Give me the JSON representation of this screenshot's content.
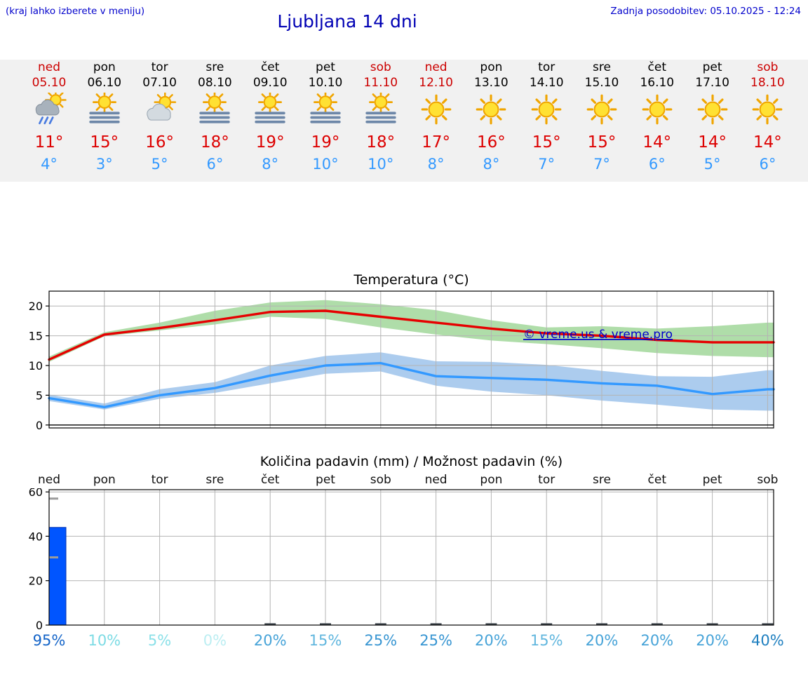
{
  "header": {
    "hint": "(kraj lahko izberete v meniju)",
    "title": "Ljubljana 14 dni",
    "updated": "Zadnja posodobitev: 05.10.2025 - 12:24"
  },
  "colors": {
    "link_blue": "#0000cc",
    "title_blue": "#0000b4",
    "weekend_red": "#cc0000",
    "tmax_red": "#dd0000",
    "tmin_blue": "#3399ff",
    "strip_bg": "#f1f1f1",
    "max_line": "#e60000",
    "min_line": "#3399ff",
    "max_band": "#a6d9a0",
    "min_band": "#a3c6ec",
    "bar_blue": "#0055ff"
  },
  "forecast": {
    "days": [
      {
        "name": "ned",
        "date": "05.10",
        "weekend": true,
        "icon": "sun-rain",
        "tmax": "11°",
        "tmin": "4°"
      },
      {
        "name": "pon",
        "date": "06.10",
        "weekend": false,
        "icon": "sun-fog",
        "tmax": "15°",
        "tmin": "3°"
      },
      {
        "name": "tor",
        "date": "07.10",
        "weekend": false,
        "icon": "sun-cloud",
        "tmax": "16°",
        "tmin": "5°"
      },
      {
        "name": "sre",
        "date": "08.10",
        "weekend": false,
        "icon": "sun-fog",
        "tmax": "18°",
        "tmin": "6°"
      },
      {
        "name": "čet",
        "date": "09.10",
        "weekend": false,
        "icon": "sun-fog",
        "tmax": "19°",
        "tmin": "8°"
      },
      {
        "name": "pet",
        "date": "10.10",
        "weekend": false,
        "icon": "sun-fog",
        "tmax": "19°",
        "tmin": "10°"
      },
      {
        "name": "sob",
        "date": "11.10",
        "weekend": true,
        "icon": "sun-fog",
        "tmax": "18°",
        "tmin": "10°"
      },
      {
        "name": "ned",
        "date": "12.10",
        "weekend": true,
        "icon": "sun",
        "tmax": "17°",
        "tmin": "8°"
      },
      {
        "name": "pon",
        "date": "13.10",
        "weekend": false,
        "icon": "sun",
        "tmax": "16°",
        "tmin": "8°"
      },
      {
        "name": "tor",
        "date": "14.10",
        "weekend": false,
        "icon": "sun",
        "tmax": "15°",
        "tmin": "7°"
      },
      {
        "name": "sre",
        "date": "15.10",
        "weekend": false,
        "icon": "sun",
        "tmax": "15°",
        "tmin": "7°"
      },
      {
        "name": "čet",
        "date": "16.10",
        "weekend": false,
        "icon": "sun",
        "tmax": "14°",
        "tmin": "6°"
      },
      {
        "name": "pet",
        "date": "17.10",
        "weekend": false,
        "icon": "sun",
        "tmax": "14°",
        "tmin": "5°"
      },
      {
        "name": "sob",
        "date": "18.10",
        "weekend": true,
        "icon": "sun",
        "tmax": "14°",
        "tmin": "6°"
      }
    ]
  },
  "chart_data": [
    {
      "type": "line",
      "title": "Temperatura (°C)",
      "categories": [
        "ned 05.10",
        "pon 06.10",
        "tor 07.10",
        "sre 08.10",
        "čet 09.10",
        "pet 10.10",
        "sob 11.10",
        "ned 12.10",
        "pon 13.10",
        "tor 14.10",
        "sre 15.10",
        "čet 16.10",
        "pet 17.10",
        "sob 18.10"
      ],
      "series": [
        {
          "name": "max temperatura",
          "color": "#e60000",
          "values": [
            11,
            15.2,
            16.3,
            17.6,
            19,
            19.2,
            18.2,
            17.2,
            16.2,
            15.4,
            15,
            14.3,
            13.9,
            13.9
          ]
        },
        {
          "name": "min temperatura",
          "color": "#3399ff",
          "values": [
            4.5,
            3,
            5,
            6.2,
            8.3,
            10,
            10.4,
            8.2,
            7.9,
            7.6,
            7,
            6.6,
            5.2,
            6
          ]
        }
      ],
      "bands": [
        {
          "series": "max temperatura",
          "color": "#a6d9a0",
          "upper": [
            11.5,
            15.6,
            17.2,
            19.2,
            20.6,
            21,
            20.3,
            19.3,
            17.6,
            16.4,
            16.6,
            16.2,
            16.6,
            17.2
          ],
          "lower": [
            10.6,
            14.9,
            15.9,
            16.9,
            18.2,
            17.8,
            16.4,
            15.2,
            14.2,
            13.6,
            12.9,
            12.1,
            11.6,
            11.4
          ]
        },
        {
          "series": "min temperatura",
          "color": "#a3c6ec",
          "upper": [
            5.1,
            3.6,
            6,
            7.2,
            10,
            11.6,
            12.2,
            10.7,
            10.6,
            10.1,
            9.1,
            8.2,
            8.1,
            9.2
          ],
          "lower": [
            4,
            2.6,
            4.4,
            5.4,
            7,
            8.6,
            9,
            6.6,
            5.6,
            5,
            4.1,
            3.4,
            2.6,
            2.4
          ]
        }
      ],
      "ylim": [
        -0.5,
        22.5
      ],
      "yticks": [
        0,
        5,
        10,
        15,
        20
      ],
      "grid": true,
      "legend": "none",
      "watermark": "© vreme.us & vreme.pro"
    },
    {
      "type": "bar",
      "title": "Količina padavin (mm) / Možnost padavin (%)",
      "categories": [
        "ned",
        "pon",
        "tor",
        "sre",
        "čet",
        "pet",
        "sob",
        "ned",
        "pon",
        "tor",
        "sre",
        "čet",
        "pet",
        "sob"
      ],
      "values_mm": [
        44,
        0,
        0,
        0,
        0.4,
        0.4,
        0.4,
        0.4,
        0.3,
        0.3,
        0.3,
        0.4,
        0.4,
        0.3
      ],
      "probability": [
        {
          "label": "95%",
          "color": "#1464c8"
        },
        {
          "label": "10%",
          "color": "#7cdbe4"
        },
        {
          "label": "5%",
          "color": "#8ae0e8"
        },
        {
          "label": "0%",
          "color": "#bceef2"
        },
        {
          "label": "20%",
          "color": "#46a3d8"
        },
        {
          "label": "15%",
          "color": "#60b6de"
        },
        {
          "label": "25%",
          "color": "#3795d2"
        },
        {
          "label": "25%",
          "color": "#3795d2"
        },
        {
          "label": "20%",
          "color": "#46a3d8"
        },
        {
          "label": "15%",
          "color": "#60b6de"
        },
        {
          "label": "20%",
          "color": "#46a3d8"
        },
        {
          "label": "20%",
          "color": "#46a3d8"
        },
        {
          "label": "20%",
          "color": "#46a3d8"
        },
        {
          "label": "40%",
          "color": "#2080c0"
        }
      ],
      "range_markers": [
        {
          "day": 0,
          "values": [
            57,
            30.5
          ]
        }
      ],
      "ylim": [
        0,
        61
      ],
      "yticks": [
        0,
        20,
        40,
        60
      ],
      "grid": true
    }
  ]
}
